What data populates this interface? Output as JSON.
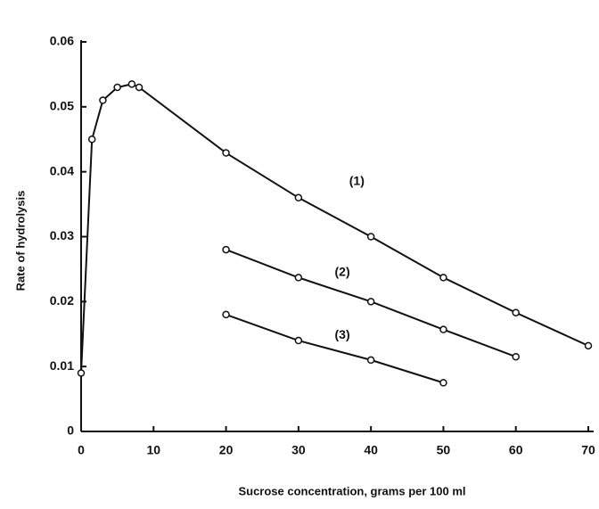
{
  "chart_data": {
    "type": "line",
    "x_label": "Sucrose concentration, grams per 100 ml",
    "y_label": "Rate of hydrolysis",
    "xlim": [
      0,
      70
    ],
    "ylim": [
      0,
      0.06
    ],
    "xticks": [
      0,
      10,
      20,
      30,
      40,
      50,
      60,
      70
    ],
    "yticks": [
      0,
      0.01,
      0.02,
      0.03,
      0.04,
      0.05,
      0.06
    ],
    "grid": false,
    "series": [
      {
        "name": "(1)",
        "color": "#111111",
        "x": [
          0,
          1.5,
          3,
          5,
          7,
          8,
          20,
          30,
          40,
          50,
          60,
          70
        ],
        "values": [
          0.009,
          0.045,
          0.051,
          0.053,
          0.0535,
          0.053,
          0.0429,
          0.036,
          0.03,
          0.0237,
          0.0183,
          0.0132
        ]
      },
      {
        "name": "(2)",
        "color": "#111111",
        "x": [
          20,
          30,
          40,
          50,
          60
        ],
        "values": [
          0.028,
          0.0237,
          0.02,
          0.0157,
          0.0115
        ]
      },
      {
        "name": "(3)",
        "color": "#111111",
        "x": [
          20,
          30,
          40,
          50
        ],
        "values": [
          0.018,
          0.014,
          0.011,
          0.0075
        ]
      }
    ]
  }
}
